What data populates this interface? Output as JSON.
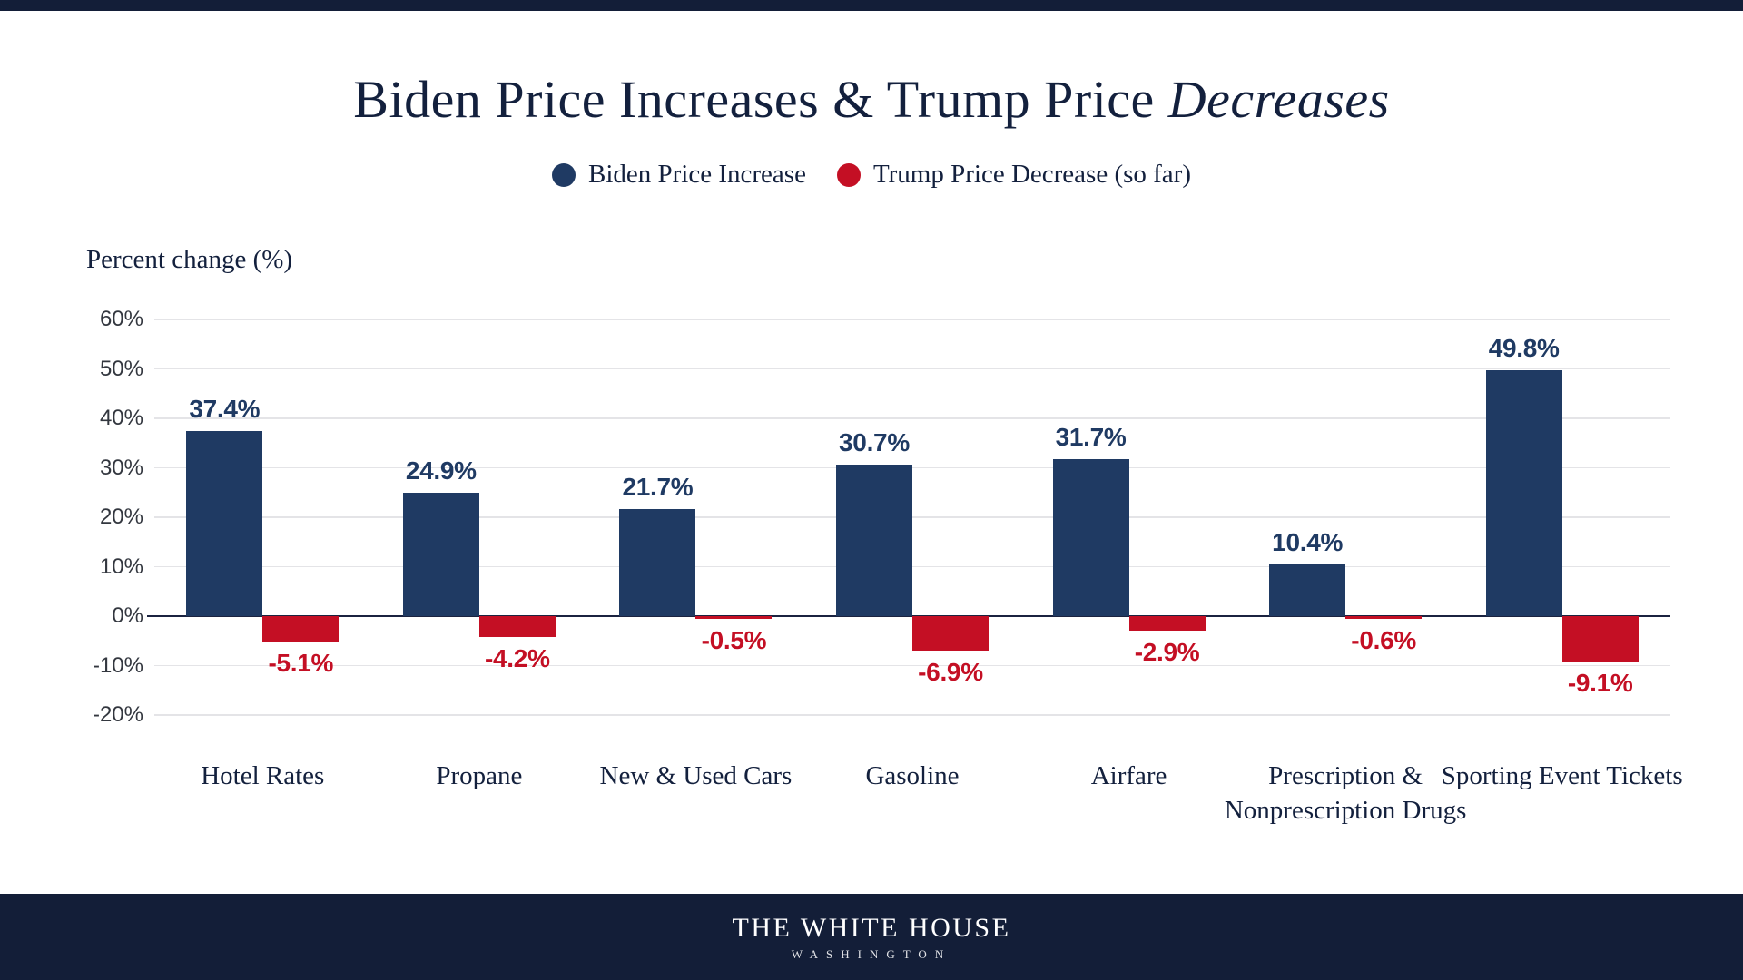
{
  "header": {
    "title_regular": "Biden Price Increases & Trump Price ",
    "title_italic": "Decreases"
  },
  "legend": [
    {
      "label": "Biden Price Increase",
      "color": "#1f3a63"
    },
    {
      "label": "Trump Price Decrease (so far)",
      "color": "#c40f24"
    }
  ],
  "colors": {
    "biden_navy": "#1f3a63",
    "trump_red": "#c40f24",
    "title_navy": "#13203d",
    "axis_line": "#1b2340",
    "gridline": "#e4e4e7",
    "tick_text": "#33373f",
    "footer_navy": "#131e38"
  },
  "chart_data": {
    "type": "bar",
    "title": "Biden Price Increases & Trump Price Decreases",
    "ylabel": "Percent change (%)",
    "xlabel": "",
    "categories": [
      "Hotel Rates",
      "Propane",
      "New & Used Cars",
      "Gasoline",
      "Airfare",
      "Prescription & Nonprescription Drugs",
      "Sporting Event Tickets"
    ],
    "series": [
      {
        "name": "Biden Price Increase",
        "color": "#1f3a63",
        "values": [
          37.4,
          24.9,
          21.7,
          30.7,
          31.7,
          10.4,
          49.8
        ],
        "labels": [
          "37.4%",
          "24.9%",
          "21.7%",
          "30.7%",
          "31.7%",
          "10.4%",
          "49.8%"
        ]
      },
      {
        "name": "Trump Price Decrease (so far)",
        "color": "#c40f24",
        "values": [
          -5.1,
          -4.2,
          -0.5,
          -6.9,
          -2.9,
          -0.6,
          -9.1
        ],
        "labels": [
          "-5.1%",
          "-4.2%",
          "-0.5%",
          "-6.9%",
          "-2.9%",
          "-0.6%",
          "-9.1%"
        ]
      }
    ],
    "y_ticks": [
      "60%",
      "50%",
      "40%",
      "30%",
      "20%",
      "10%",
      "0%",
      "-10%",
      "-20%"
    ],
    "ylim": [
      -20,
      60
    ],
    "grid": true,
    "legend_position": "top"
  },
  "footer": {
    "line1": "THE WHITE HOUSE",
    "line2": "WASHINGTON"
  }
}
